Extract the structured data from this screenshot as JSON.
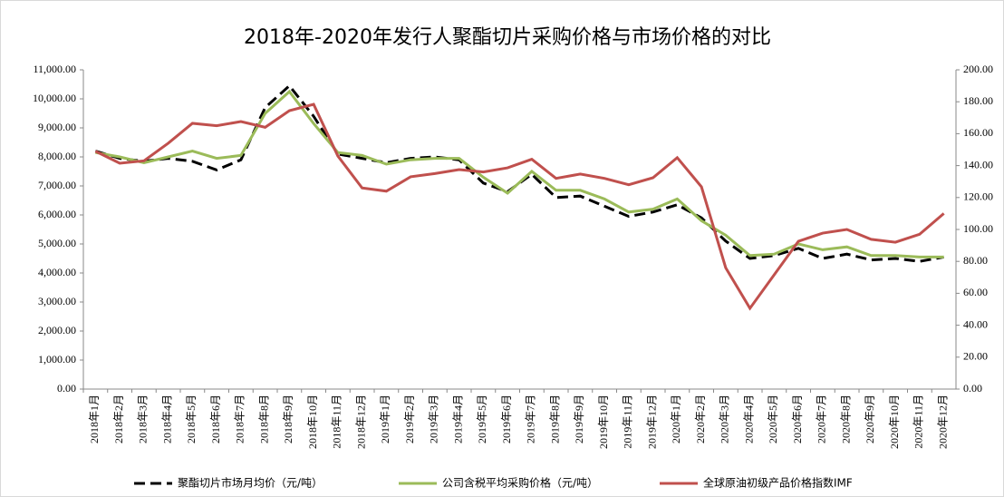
{
  "chart_data": {
    "type": "line",
    "title": "2018年-2020年发行人聚酯切片采购价格与市场价格的对比",
    "categories": [
      "2018年1月",
      "2018年2月",
      "2018年3月",
      "2018年4月",
      "2018年5月",
      "2018年6月",
      "2018年7月",
      "2018年8月",
      "2018年9月",
      "2018年10月",
      "2018年11月",
      "2018年12月",
      "2019年1月",
      "2019年2月",
      "2019年3月",
      "2019年4月",
      "2019年5月",
      "2019年6月",
      "2019年7月",
      "2019年8月",
      "2019年9月",
      "2019年10月",
      "2019年11月",
      "2019年12月",
      "2020年1月",
      "2020年2月",
      "2020年3月",
      "2020年4月",
      "2020年5月",
      "2020年6月",
      "2020年7月",
      "2020年8月",
      "2020年9月",
      "2020年10月",
      "2020年11月",
      "2020年12月"
    ],
    "series": [
      {
        "name": "聚酯切片市场月均价（元/吨）",
        "color": "#000000",
        "dash": true,
        "values": [
          8200,
          7950,
          7850,
          7950,
          7850,
          7550,
          7900,
          9700,
          10450,
          9400,
          8100,
          7950,
          7800,
          7950,
          8000,
          7900,
          7100,
          6800,
          7400,
          6600,
          6650,
          6300,
          5950,
          6100,
          6350,
          5900,
          5100,
          4500,
          4600,
          4850,
          4500,
          4650,
          4450,
          4500,
          4400,
          4550
        ]
      },
      {
        "name": "公司含税平均采购价格（元/吨）",
        "color": "#9bbb59",
        "values": [
          8150,
          8000,
          7800,
          8000,
          8200,
          7950,
          8050,
          9500,
          10250,
          9150,
          8150,
          8050,
          7750,
          7900,
          7950,
          7950,
          7300,
          6750,
          7500,
          6850,
          6850,
          6550,
          6100,
          6200,
          6550,
          5800,
          5300,
          4600,
          4650,
          5000,
          4800,
          4900,
          4600,
          4600,
          4550,
          4550
        ]
      },
      {
        "name": "全球原油初级产品价格指数IMF",
        "color": "#c0504d",
        "axis": "y2",
        "values": [
          149,
          141.5,
          143,
          154,
          166.5,
          165,
          167.6,
          164,
          174.4,
          178.4,
          146,
          126,
          124,
          133,
          135,
          137.5,
          136,
          138.6,
          144,
          132,
          134.7,
          132,
          128,
          132.4,
          145,
          126.7,
          76,
          50.6,
          71.6,
          92.6,
          97.7,
          100,
          93.8,
          92,
          97,
          110
        ]
      }
    ],
    "ylim": [
      0,
      11000
    ],
    "yticks": [
      {
        "value": 0,
        "label": "0.00"
      },
      {
        "value": 1000,
        "label": "1,000.00"
      },
      {
        "value": 2000,
        "label": "2,000.00"
      },
      {
        "value": 3000,
        "label": "3,000.00"
      },
      {
        "value": 4000,
        "label": "4,000.00"
      },
      {
        "value": 5000,
        "label": "5,000.00"
      },
      {
        "value": 6000,
        "label": "6,000.00"
      },
      {
        "value": 7000,
        "label": "7,000.00"
      },
      {
        "value": 8000,
        "label": "8,000.00"
      },
      {
        "value": 9000,
        "label": "9,000.00"
      },
      {
        "value": 10000,
        "label": "10,000.00"
      },
      {
        "value": 11000,
        "label": "11,000.00"
      }
    ],
    "y2lim": [
      0,
      200
    ],
    "y2ticks": [
      {
        "value": 0,
        "label": "0.00"
      },
      {
        "value": 20,
        "label": "20.00"
      },
      {
        "value": 40,
        "label": "40.00"
      },
      {
        "value": 60,
        "label": "60.00"
      },
      {
        "value": 80,
        "label": "80.00"
      },
      {
        "value": 100,
        "label": "100.00"
      },
      {
        "value": 120,
        "label": "120.00"
      },
      {
        "value": 140,
        "label": "140.00"
      },
      {
        "value": 160,
        "label": "160.00"
      },
      {
        "value": 180,
        "label": "180.00"
      },
      {
        "value": 200,
        "label": "200.00"
      }
    ],
    "grid": false
  }
}
